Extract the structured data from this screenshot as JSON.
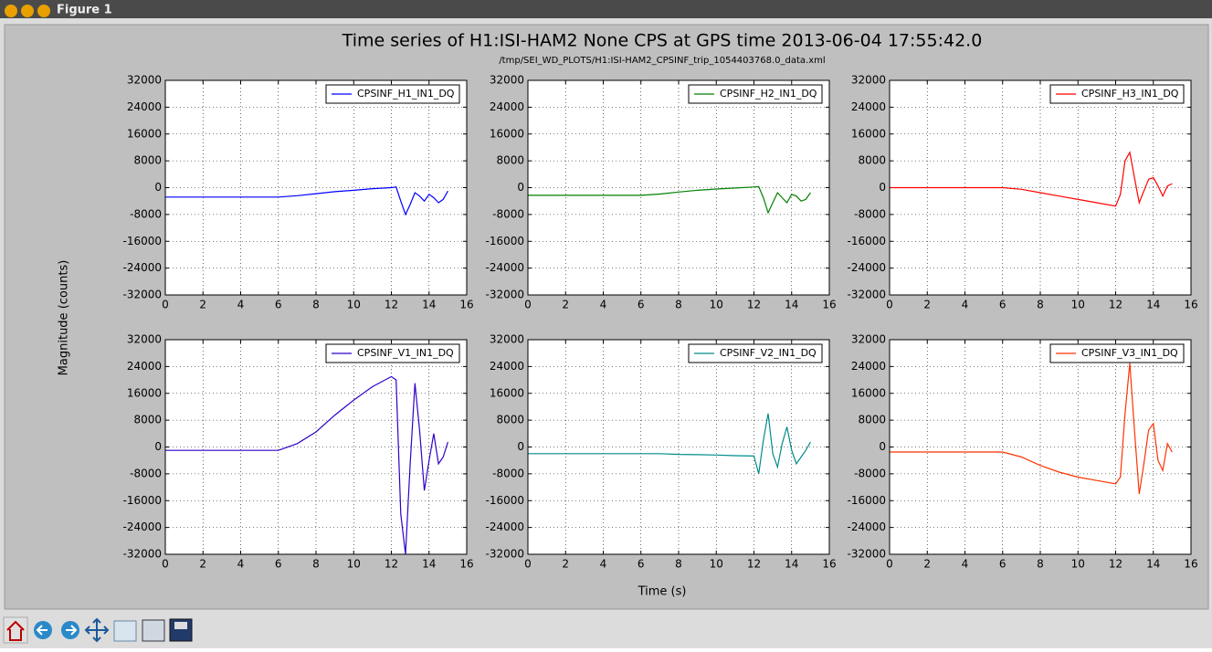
{
  "window": {
    "title": "Figure 1"
  },
  "figure": {
    "title": "Time series of H1:ISI-HAM2 None CPS at GPS time 2013-06-04 17:55:42.0",
    "subtitle": "/tmp/SEI_WD_PLOTS/H1:ISI-HAM2_CPSINF_trip_1054403768.0_data.xml",
    "xlabel": "Time (s)",
    "ylabel": "Magnitude (counts)"
  },
  "chart_data": [
    {
      "type": "line",
      "grid": true,
      "legend": "upper right",
      "xlim": [
        0,
        16
      ],
      "ylim": [
        -32000,
        32000
      ],
      "xticks": [
        0,
        2,
        4,
        6,
        8,
        10,
        12,
        14,
        16
      ],
      "yticks": [
        32000,
        24000,
        16000,
        8000,
        0,
        -8000,
        -16000,
        -24000,
        -32000
      ],
      "x": [
        0,
        1,
        2,
        3,
        4,
        5,
        6,
        7,
        8,
        9,
        10,
        11,
        12,
        12.25,
        12.5,
        12.75,
        13,
        13.25,
        13.5,
        13.75,
        14,
        14.25,
        14.5,
        14.75,
        15
      ],
      "series": [
        {
          "name": "CPSINF_H1_IN1_DQ",
          "color": "#0000ff",
          "values": [
            -2800,
            -2800,
            -2800,
            -2800,
            -2800,
            -2800,
            -2800,
            -2400,
            -1800,
            -1200,
            -800,
            -300,
            0,
            200,
            -4000,
            -8000,
            -5000,
            -1500,
            -2500,
            -4000,
            -2000,
            -3000,
            -4500,
            -3500,
            -1000
          ]
        }
      ]
    },
    {
      "type": "line",
      "grid": true,
      "legend": "upper right",
      "xlim": [
        0,
        16
      ],
      "ylim": [
        -32000,
        32000
      ],
      "xticks": [
        0,
        2,
        4,
        6,
        8,
        10,
        12,
        14,
        16
      ],
      "yticks": [
        32000,
        24000,
        16000,
        8000,
        0,
        -8000,
        -16000,
        -24000,
        -32000
      ],
      "x": [
        0,
        1,
        2,
        3,
        4,
        5,
        6,
        7,
        8,
        9,
        10,
        11,
        12,
        12.25,
        12.5,
        12.75,
        13,
        13.25,
        13.5,
        13.75,
        14,
        14.25,
        14.5,
        14.75,
        15
      ],
      "series": [
        {
          "name": "CPSINF_H2_IN1_DQ",
          "color": "#008000",
          "values": [
            -2300,
            -2300,
            -2300,
            -2300,
            -2300,
            -2300,
            -2300,
            -1900,
            -1300,
            -800,
            -400,
            -100,
            200,
            300,
            -3000,
            -7500,
            -4500,
            -1500,
            -3000,
            -4500,
            -2000,
            -2500,
            -4000,
            -3500,
            -1500
          ]
        }
      ]
    },
    {
      "type": "line",
      "grid": true,
      "legend": "upper right",
      "xlim": [
        0,
        16
      ],
      "ylim": [
        -32000,
        32000
      ],
      "xticks": [
        0,
        2,
        4,
        6,
        8,
        10,
        12,
        14,
        16
      ],
      "yticks": [
        32000,
        24000,
        16000,
        8000,
        0,
        -8000,
        -16000,
        -24000,
        -32000
      ],
      "x": [
        0,
        1,
        2,
        3,
        4,
        5,
        6,
        7,
        8,
        9,
        10,
        11,
        12,
        12.25,
        12.5,
        12.75,
        13,
        13.25,
        13.5,
        13.75,
        14,
        14.25,
        14.5,
        14.75,
        15
      ],
      "series": [
        {
          "name": "CPSINF_H3_IN1_DQ",
          "color": "#ff0000",
          "values": [
            0,
            0,
            0,
            0,
            0,
            0,
            0,
            -500,
            -1500,
            -2500,
            -3500,
            -4500,
            -5500,
            -2000,
            8000,
            10500,
            3000,
            -4500,
            -1000,
            2500,
            3000,
            500,
            -2500,
            500,
            1200
          ]
        }
      ]
    },
    {
      "type": "line",
      "grid": true,
      "legend": "upper right",
      "xlim": [
        0,
        16
      ],
      "ylim": [
        -32000,
        32000
      ],
      "xticks": [
        0,
        2,
        4,
        6,
        8,
        10,
        12,
        14,
        16
      ],
      "yticks": [
        32000,
        24000,
        16000,
        8000,
        0,
        -8000,
        -16000,
        -24000,
        -32000
      ],
      "x": [
        0,
        1,
        2,
        3,
        4,
        5,
        6,
        7,
        8,
        9,
        10,
        11,
        12,
        12.25,
        12.5,
        12.75,
        13,
        13.25,
        13.5,
        13.75,
        14,
        14.25,
        14.5,
        14.75,
        15
      ],
      "series": [
        {
          "name": "CPSINF_V1_IN1_DQ",
          "color": "#3000c8",
          "values": [
            -1000,
            -1000,
            -1000,
            -1000,
            -1000,
            -1000,
            -1000,
            1000,
            4500,
            9500,
            14000,
            18000,
            21000,
            20000,
            -20000,
            -32000,
            -5000,
            19000,
            5000,
            -13000,
            -4000,
            4000,
            -5000,
            -3000,
            1500
          ]
        }
      ]
    },
    {
      "type": "line",
      "grid": true,
      "legend": "upper right",
      "xlim": [
        0,
        16
      ],
      "ylim": [
        -32000,
        32000
      ],
      "xticks": [
        0,
        2,
        4,
        6,
        8,
        10,
        12,
        14,
        16
      ],
      "yticks": [
        32000,
        24000,
        16000,
        8000,
        0,
        -8000,
        -16000,
        -24000,
        -32000
      ],
      "x": [
        0,
        1,
        2,
        3,
        4,
        5,
        6,
        7,
        8,
        9,
        10,
        11,
        12,
        12.25,
        12.5,
        12.75,
        13,
        13.25,
        13.5,
        13.75,
        14,
        14.25,
        14.5,
        14.75,
        15
      ],
      "series": [
        {
          "name": "CPSINF_V2_IN1_DQ",
          "color": "#008b8b",
          "values": [
            -2000,
            -2000,
            -2000,
            -2000,
            -2000,
            -2000,
            -2000,
            -2000,
            -2200,
            -2300,
            -2400,
            -2600,
            -2700,
            -8000,
            2000,
            10000,
            -2000,
            -6000,
            1000,
            6000,
            -1000,
            -5000,
            -3000,
            -1000,
            1500
          ]
        }
      ]
    },
    {
      "type": "line",
      "grid": true,
      "legend": "upper right",
      "xlim": [
        0,
        16
      ],
      "ylim": [
        -32000,
        32000
      ],
      "xticks": [
        0,
        2,
        4,
        6,
        8,
        10,
        12,
        14,
        16
      ],
      "yticks": [
        32000,
        24000,
        16000,
        8000,
        0,
        -8000,
        -16000,
        -24000,
        -32000
      ],
      "x": [
        0,
        1,
        2,
        3,
        4,
        5,
        6,
        7,
        8,
        9,
        10,
        11,
        12,
        12.25,
        12.5,
        12.75,
        13,
        13.25,
        13.5,
        13.75,
        14,
        14.25,
        14.5,
        14.75,
        15
      ],
      "series": [
        {
          "name": "CPSINF_V3_IN1_DQ",
          "color": "#ff3300",
          "values": [
            -1500,
            -1500,
            -1500,
            -1500,
            -1500,
            -1500,
            -1500,
            -3000,
            -5500,
            -7500,
            -9000,
            -10000,
            -11000,
            -9000,
            10000,
            25000,
            5000,
            -14000,
            -5000,
            5000,
            7000,
            -4000,
            -7000,
            1000,
            -1500
          ]
        }
      ]
    }
  ]
}
